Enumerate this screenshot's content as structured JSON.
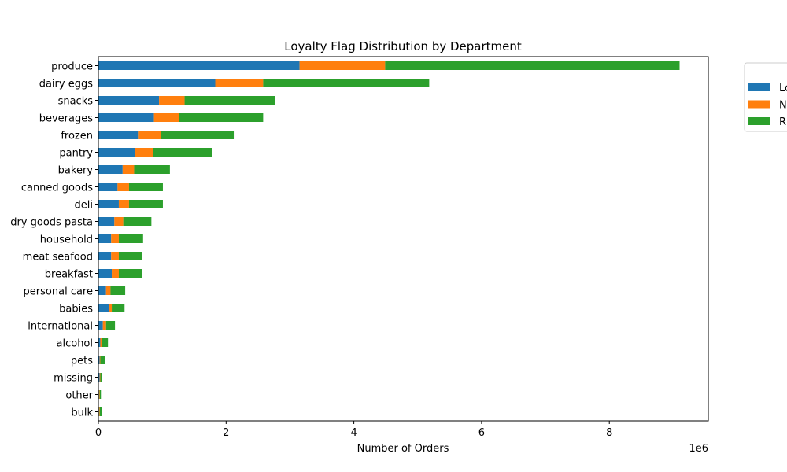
{
  "chart_data": {
    "type": "bar",
    "orientation": "horizontal",
    "stacked": true,
    "title": "Loyalty Flag Distribution by Department",
    "xlabel": "Number of Orders",
    "ylabel": "",
    "x_offset_label": "1e6",
    "xlim": [
      0,
      9.55
    ],
    "x_ticks": [
      0,
      2,
      4,
      6,
      8
    ],
    "x_tick_labels": [
      "0",
      "2",
      "4",
      "6",
      "8"
    ],
    "grid": false,
    "legend_position": "outside top-right (partially clipped)",
    "categories": [
      "produce",
      "dairy eggs",
      "snacks",
      "beverages",
      "frozen",
      "pantry",
      "bakery",
      "canned goods",
      "deli",
      "dry goods pasta",
      "household",
      "meat seafood",
      "breakfast",
      "personal care",
      "babies",
      "international",
      "alcohol",
      "pets",
      "missing",
      "other",
      "bulk"
    ],
    "series": [
      {
        "name": "Lo",
        "color": "#1f77b4",
        "values": [
          3.15,
          1.83,
          0.95,
          0.87,
          0.62,
          0.57,
          0.38,
          0.3,
          0.32,
          0.25,
          0.2,
          0.2,
          0.21,
          0.12,
          0.17,
          0.07,
          0.03,
          0.02,
          0.02,
          0.01,
          0.01
        ]
      },
      {
        "name": "N",
        "color": "#ff7f0e",
        "values": [
          1.34,
          0.75,
          0.4,
          0.39,
          0.36,
          0.29,
          0.18,
          0.18,
          0.16,
          0.14,
          0.12,
          0.12,
          0.11,
          0.07,
          0.04,
          0.05,
          0.02,
          0.01,
          0.01,
          0.01,
          0.01
        ]
      },
      {
        "name": "R",
        "color": "#2ca02c",
        "values": [
          4.61,
          2.6,
          1.42,
          1.32,
          1.14,
          0.92,
          0.56,
          0.53,
          0.53,
          0.44,
          0.38,
          0.36,
          0.36,
          0.23,
          0.2,
          0.14,
          0.1,
          0.07,
          0.03,
          0.02,
          0.03
        ]
      }
    ]
  }
}
